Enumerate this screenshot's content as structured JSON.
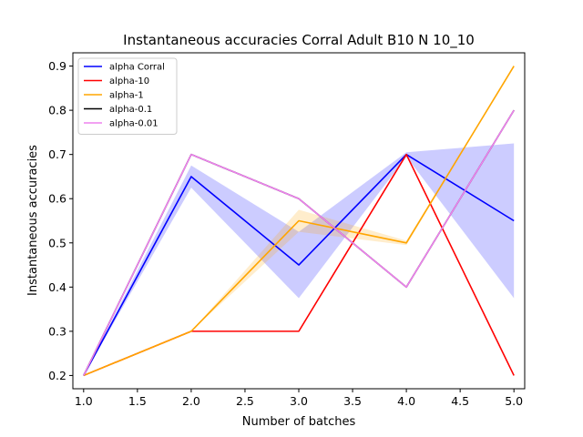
{
  "chart_data": {
    "type": "line",
    "title": "Instantaneous accuracies Corral Adult B10 N 10_10",
    "xlabel": "Number of batches",
    "ylabel": "Instantaneous accuracies",
    "xlim": [
      0.9,
      5.1
    ],
    "ylim": [
      0.17,
      0.93
    ],
    "xticks": [
      "1.0",
      "1.5",
      "2.0",
      "2.5",
      "3.0",
      "3.5",
      "4.0",
      "4.5",
      "5.0"
    ],
    "yticks": [
      "0.2",
      "0.3",
      "0.4",
      "0.5",
      "0.6",
      "0.7",
      "0.8",
      "0.9"
    ],
    "grid": false,
    "legend_position": "top-left",
    "x": [
      1,
      2,
      3,
      4,
      5
    ],
    "series": [
      {
        "name": "alpha Corral",
        "color": "#0000ff",
        "values": [
          0.2,
          0.65,
          0.45,
          0.7,
          0.55
        ],
        "band_lower": [
          0.2,
          0.625,
          0.375,
          0.695,
          0.375
        ],
        "band_upper": [
          0.2,
          0.675,
          0.525,
          0.705,
          0.725
        ],
        "band_color": "#0000ff"
      },
      {
        "name": "alpha-10",
        "color": "#ff0000",
        "values": [
          0.2,
          0.3,
          0.3,
          0.7,
          0.2
        ]
      },
      {
        "name": "alpha-1",
        "color": "#ffa500",
        "values": [
          0.2,
          0.3,
          0.55,
          0.5,
          0.9
        ],
        "band_lower": [
          0.2,
          0.3,
          0.525,
          0.495,
          0.9
        ],
        "band_upper": [
          0.2,
          0.3,
          0.575,
          0.505,
          0.9
        ],
        "band_color": "#ffa500"
      },
      {
        "name": "alpha-0.1",
        "color": "#000000",
        "values": [
          0.2,
          0.7,
          0.6,
          0.4,
          0.8
        ]
      },
      {
        "name": "alpha-0.01",
        "color": "#ee82ee",
        "values": [
          0.2,
          0.7,
          0.6,
          0.4,
          0.8
        ]
      }
    ]
  }
}
